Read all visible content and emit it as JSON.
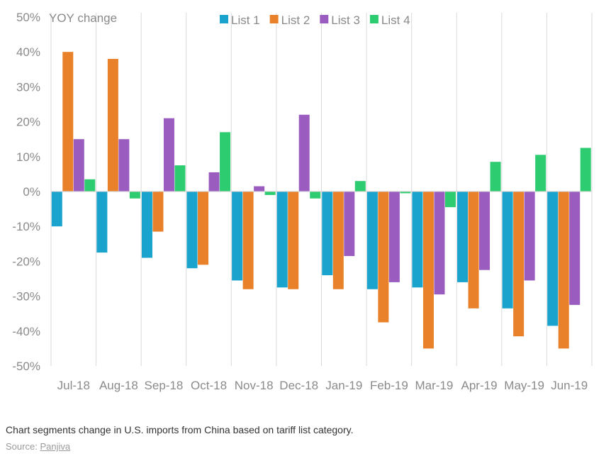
{
  "chart_data": {
    "type": "bar",
    "ylabel": "YOY change",
    "ylim": [
      -50,
      50
    ],
    "yticks": [
      "50%",
      "40%",
      "30%",
      "20%",
      "10%",
      "0%",
      "-10%",
      "-20%",
      "-30%",
      "-40%",
      "-50%"
    ],
    "categories": [
      "Jul-18",
      "Aug-18",
      "Sep-18",
      "Oct-18",
      "Nov-18",
      "Dec-18",
      "Jan-19",
      "Feb-19",
      "Mar-19",
      "Apr-19",
      "May-19",
      "Jun-19"
    ],
    "legend_position": "top",
    "grid": "vertical",
    "series": [
      {
        "name": "List 1",
        "color": "#1aa3cc",
        "values": [
          -10,
          -17.5,
          -19,
          -22,
          -25.5,
          -27.5,
          -24,
          -28,
          -27.5,
          -26,
          -33.5,
          -38.5
        ]
      },
      {
        "name": "List 2",
        "color": "#e8812a",
        "values": [
          40,
          38,
          -11.5,
          -21,
          -28,
          -28,
          -28,
          -37.5,
          -45,
          -33.5,
          -41.5,
          -45
        ]
      },
      {
        "name": "List 3",
        "color": "#9b5cc0",
        "values": [
          15,
          15,
          21,
          5.5,
          1.5,
          22,
          -18.5,
          -26,
          -29.5,
          -22.5,
          -25.5,
          -32.5
        ]
      },
      {
        "name": "List 4",
        "color": "#2ecc71",
        "values": [
          3.5,
          -2,
          7.5,
          17,
          -1,
          -2,
          3,
          -0.5,
          -4.5,
          8.5,
          10.5,
          12.5
        ]
      }
    ]
  },
  "caption": "Chart segments change in U.S. imports from China based on tariff list category.",
  "source": {
    "label": "Source:",
    "link_text": "Panjiva"
  }
}
